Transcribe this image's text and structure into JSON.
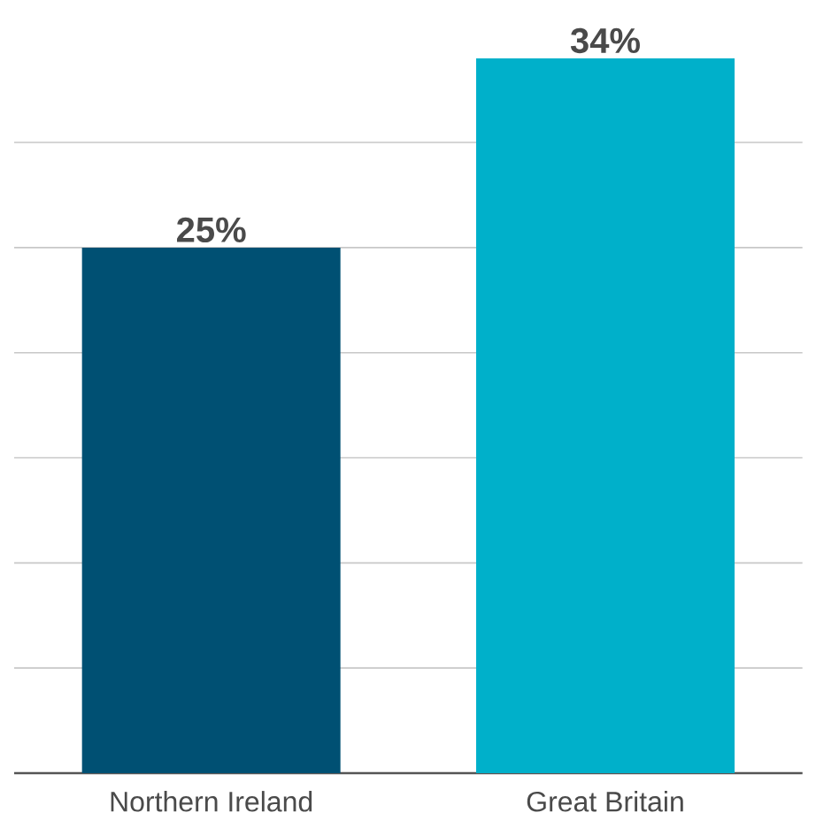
{
  "chart_data": {
    "type": "bar",
    "categories": [
      "Northern Ireland",
      "Great Britain"
    ],
    "values": [
      25,
      34
    ],
    "colors": [
      "#005073",
      "#00b0ca"
    ],
    "value_labels": [
      "25%",
      "34%"
    ],
    "grid": "y"
  }
}
